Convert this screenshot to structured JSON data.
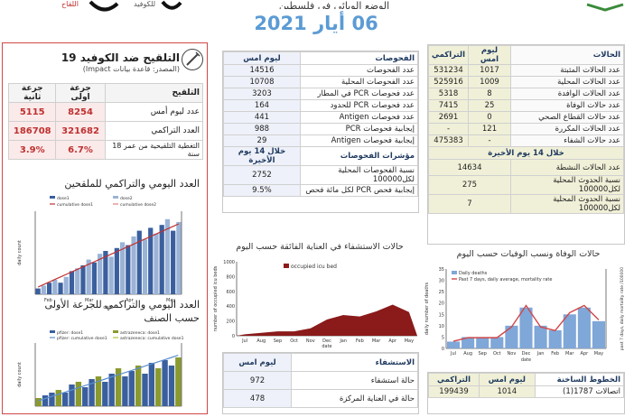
{
  "header": {
    "date": "06 أيار 2021",
    "top_text": "الوضع الوبائي في فلسطين",
    "logo_left_line1": "اللقاح",
    "logo_left_line2": "للكوفيد"
  },
  "cases": {
    "header": {
      "label": "الحالات",
      "today": "ليوم امس",
      "total": "التراكمي"
    },
    "rows": [
      {
        "label": "عدد الحالات المثبتة",
        "today": "1017",
        "total": "531234"
      },
      {
        "label": "عدد الحالات المحلية",
        "today": "1009",
        "total": "525916"
      },
      {
        "label": "عدد الحالات الوافدة",
        "today": "8",
        "total": "5318"
      },
      {
        "label": "عدد حالات الوفاة",
        "today": "25",
        "total": "7415"
      },
      {
        "label": "عدد حالات القطاع الصحي",
        "today": "0",
        "total": "2691"
      },
      {
        "label": "عدد الحالات المكررة",
        "today": "121",
        "total": "-"
      },
      {
        "label": "عدد حالات الشفاء",
        "today": "-",
        "total": "475383"
      }
    ],
    "last14": "خلال 14 يوم الأخيرة",
    "active_label": "عدد الحالات النشطة",
    "active": "14634",
    "inc_label": "نسبة الحدوث المحلية لكل100000",
    "inc": "275",
    "inc2_label": "نسبة الحدوث المحلية لكل100000",
    "inc2": "7"
  },
  "tests": {
    "header": {
      "label": "الفحوصات",
      "today": "ليوم امس"
    },
    "rows": [
      {
        "label": "عدد الفحوصات",
        "today": "14516"
      },
      {
        "label": "عدد الفحوصات المحلية",
        "today": "10708"
      },
      {
        "label": "عدد فحوصات PCR في المطار",
        "today": "3203"
      },
      {
        "label": "عدد فحوصات PCR للحدود",
        "today": "164"
      },
      {
        "label": "عدد فحوصات Antigen",
        "today": "441"
      },
      {
        "label": "إيجابية فحوصات PCR",
        "today": "988"
      },
      {
        "label": "إيجابية فحوصات Antigen",
        "today": "29"
      }
    ],
    "indicators_label": "مؤشرات الفحوصات",
    "indicators_sub": "خلال 14 يوم الأخيرة",
    "ind_rows": [
      {
        "label": "نسبة الفحوصات المحلية لكل100000",
        "value": "2752"
      },
      {
        "label": "إيجابية فحص PCR لكل مائة فحص",
        "value": "9.5%"
      }
    ]
  },
  "hospital": {
    "title": "حالات الاستشفاء في العناية الفائقة حسب اليوم",
    "legend": "occupied icu bed",
    "ylabel": "number of occupied icu beds",
    "xlabel": "date",
    "table_header": {
      "label": "الاستشفاء",
      "today": "ليوم امس"
    },
    "rows": [
      {
        "label": "حالة استشفاء",
        "today": "972"
      },
      {
        "label": "حالة في العناية المركزة",
        "today": "478"
      }
    ]
  },
  "deaths_chart": {
    "title": "حالات الوفاة ونسب الوفيات حسب اليوم",
    "legend1": "Daily deaths",
    "legend2": "Past 7 days, daily average, mortality rate",
    "ylabel": "daily number of deaths",
    "y2label": "past 7 days, daily mortality rate /100000",
    "xlabel": "date"
  },
  "lines": {
    "header": {
      "label": "الخطوط الساخنة",
      "today": "ليوم امس",
      "total": "التراكمي"
    },
    "rows": [
      {
        "label": "اتصالات 1787(1)",
        "today": "1014",
        "total": "199439"
      }
    ]
  },
  "vaccine": {
    "title": "التلقيح ضد الكوفيد 19",
    "source": "(المصدر: قاعدة بيانات Impact)",
    "header": {
      "label": "التلقيح",
      "dose1": "جرعة اولى",
      "dose2": "جرعة ثانية"
    },
    "rows": [
      {
        "label": "عدد ليوم أمس",
        "dose1": "8254",
        "dose2": "5115"
      },
      {
        "label": "العدد التراكمي",
        "dose1": "321682",
        "dose2": "186708"
      },
      {
        "label": "التغطية التلقيحية من عمر 18 سنة",
        "dose1": "6.7%",
        "dose2": "3.9%"
      }
    ],
    "section1": "العدد اليومي والتراكمي للملقحين",
    "section2_line1": "العدد اليومي والتراكمي للجرعة الأولى",
    "section2_line2": "حسب الصنف",
    "chart1_legend": [
      "dose1",
      "dose2",
      "cumulative dose1",
      "cumulative dose2"
    ],
    "chart1_ylabel": "daily count",
    "chart1_xlabel": "date",
    "chart1_months": [
      "Feb",
      "Mar",
      "Apr",
      "May"
    ],
    "chart2_legend": [
      "pfizer: dose1",
      "astrazeneca: dose1",
      "pfizer: cumulative dose1",
      "astrazeneca: cumulative dose1"
    ],
    "chart2_ylabel": "daily count"
  },
  "chart_data": [
    {
      "type": "area",
      "title": "",
      "series": [
        {
          "name": "occupied icu bed"
        }
      ],
      "x": [
        "Jul",
        "Aug",
        "Sep",
        "Oct",
        "Nov",
        "Dec",
        "Jan",
        "Feb",
        "Mar",
        "Apr",
        "May"
      ],
      "values": [
        20,
        40,
        60,
        60,
        100,
        220,
        280,
        260,
        330,
        420,
        320
      ],
      "ylim": [
        0,
        1000
      ],
      "xlabel": "date",
      "ylabel": "number of occupied icu beds"
    },
    {
      "type": "bar",
      "x": [
        "Jul",
        "Aug",
        "Sep",
        "Oct",
        "Nov",
        "Dec",
        "Jan",
        "Feb",
        "Mar",
        "Apr",
        "May"
      ],
      "series": [
        {
          "name": "Daily deaths",
          "values": [
            3,
            5,
            5,
            5,
            10,
            18,
            10,
            8,
            15,
            18,
            12
          ]
        },
        {
          "name": "Past 7 days, daily average, mortality rate",
          "values": [
            0.1,
            0.15,
            0.15,
            0.15,
            0.3,
            0.6,
            0.3,
            0.25,
            0.5,
            0.6,
            0.4
          ]
        }
      ],
      "ylim": [
        0,
        35
      ],
      "xlabel": "date"
    }
  ]
}
